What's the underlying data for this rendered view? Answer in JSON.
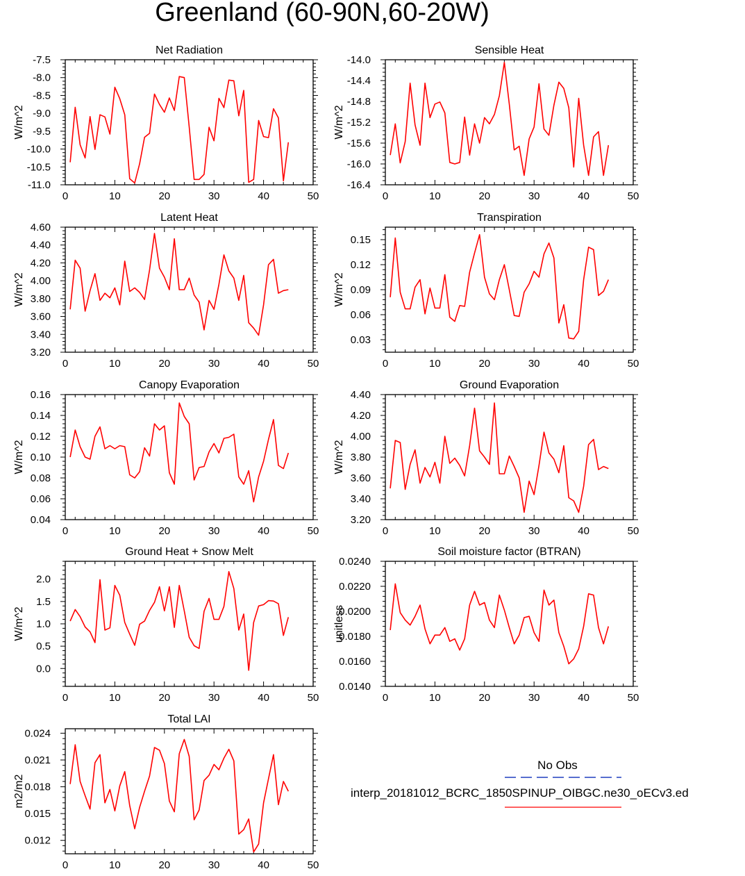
{
  "title": "Greenland (60-90N,60-20W)",
  "legend": {
    "obs_label": "No Obs",
    "obs_color": "#1f3fbf",
    "model_label": "interp_20181012_BCRC_1850SPINUP_OIBGC.ne30_oECv3.ed",
    "model_color": "#ff0000"
  },
  "chart_data": [
    {
      "type": "line",
      "title": "Net Radiation",
      "ylabel": "W/m^2",
      "xlim": [
        0,
        50
      ],
      "ylim": [
        -11.0,
        -7.5
      ],
      "xticks": [
        "0",
        "10",
        "20",
        "30",
        "40",
        "50"
      ],
      "yticks": [
        "-7.5",
        "-8.0",
        "-8.5",
        "-9.0",
        "-9.5",
        "-10.0",
        "-10.5",
        "-11.0"
      ],
      "x": [
        1,
        2,
        3,
        4,
        5,
        6,
        7,
        8,
        9,
        10,
        11,
        12,
        13,
        14,
        15,
        16,
        17,
        18,
        19,
        20,
        21,
        22,
        23,
        24,
        25,
        26,
        27,
        28,
        29,
        30,
        31,
        32,
        33,
        34,
        35,
        36,
        37,
        38,
        39,
        40,
        41,
        42,
        43,
        44,
        45
      ],
      "values": [
        -10.37,
        -8.83,
        -9.88,
        -10.25,
        -9.09,
        -10.01,
        -9.04,
        -9.1,
        -9.58,
        -8.27,
        -8.59,
        -9.04,
        -10.83,
        -10.95,
        -10.41,
        -9.67,
        -9.56,
        -8.46,
        -8.75,
        -8.97,
        -8.57,
        -8.92,
        -7.97,
        -8.0,
        -9.38,
        -10.85,
        -10.85,
        -10.71,
        -9.39,
        -9.77,
        -8.58,
        -8.84,
        -8.07,
        -8.09,
        -9.07,
        -8.36,
        -10.93,
        -10.85,
        -9.2,
        -9.65,
        -9.68,
        -8.87,
        -9.13,
        -10.89,
        -9.81
      ],
      "color": "#ff0000"
    },
    {
      "type": "line",
      "title": "Sensible Heat",
      "ylabel": "W/m^2",
      "xlim": [
        0,
        50
      ],
      "ylim": [
        -16.4,
        -14.0
      ],
      "xticks": [
        "0",
        "10",
        "20",
        "30",
        "40",
        "50"
      ],
      "yticks": [
        "-14.0",
        "-14.4",
        "-14.8",
        "-15.2",
        "-15.6",
        "-16.0",
        "-16.4"
      ],
      "x": [
        1,
        2,
        3,
        4,
        5,
        6,
        7,
        8,
        9,
        10,
        11,
        12,
        13,
        14,
        15,
        16,
        17,
        18,
        19,
        20,
        21,
        22,
        23,
        24,
        25,
        26,
        27,
        28,
        29,
        30,
        31,
        32,
        33,
        34,
        35,
        36,
        37,
        38,
        39,
        40,
        41,
        42,
        43,
        44,
        45
      ],
      "values": [
        -15.83,
        -15.23,
        -15.98,
        -15.57,
        -14.45,
        -15.25,
        -15.64,
        -14.45,
        -15.11,
        -14.85,
        -14.81,
        -15.02,
        -15.97,
        -16.0,
        -15.97,
        -15.1,
        -15.83,
        -15.23,
        -15.6,
        -15.11,
        -15.23,
        -15.05,
        -14.69,
        -14.05,
        -14.85,
        -15.73,
        -15.66,
        -16.22,
        -15.52,
        -15.29,
        -14.46,
        -15.33,
        -15.45,
        -14.87,
        -14.43,
        -14.55,
        -14.92,
        -16.06,
        -14.74,
        -15.64,
        -16.22,
        -15.48,
        -15.38,
        -16.22,
        -15.64
      ],
      "color": "#ff0000"
    },
    {
      "type": "line",
      "title": "Latent Heat",
      "ylabel": "W/m^2",
      "xlim": [
        0,
        50
      ],
      "ylim": [
        3.2,
        4.6
      ],
      "xticks": [
        "0",
        "10",
        "20",
        "30",
        "40",
        "50"
      ],
      "yticks": [
        "4.60",
        "4.40",
        "4.20",
        "4.00",
        "3.80",
        "3.60",
        "3.40",
        "3.20"
      ],
      "x": [
        1,
        2,
        3,
        4,
        5,
        6,
        7,
        8,
        9,
        10,
        11,
        12,
        13,
        14,
        15,
        16,
        17,
        18,
        19,
        20,
        21,
        22,
        23,
        24,
        25,
        26,
        27,
        28,
        29,
        30,
        31,
        32,
        33,
        34,
        35,
        36,
        37,
        38,
        39,
        40,
        41,
        42,
        43,
        44,
        45
      ],
      "values": [
        3.68,
        4.23,
        4.14,
        3.66,
        3.89,
        4.08,
        3.78,
        3.86,
        3.81,
        3.92,
        3.73,
        4.22,
        3.88,
        3.92,
        3.87,
        3.79,
        4.12,
        4.53,
        4.14,
        4.04,
        3.9,
        4.47,
        3.9,
        3.9,
        4.03,
        3.84,
        3.76,
        3.45,
        3.78,
        3.68,
        3.96,
        4.29,
        4.11,
        4.03,
        3.78,
        4.06,
        3.53,
        3.47,
        3.39,
        3.73,
        4.18,
        4.24,
        3.86,
        3.89,
        3.9
      ],
      "color": "#ff0000"
    },
    {
      "type": "line",
      "title": "Transpiration",
      "ylabel": "W/m^2",
      "xlim": [
        0,
        50
      ],
      "ylim": [
        0.015,
        0.165
      ],
      "xticks": [
        "0",
        "10",
        "20",
        "30",
        "40",
        "50"
      ],
      "yticks": [
        "0.15",
        "0.12",
        "0.09",
        "0.06",
        "0.03"
      ],
      "x": [
        1,
        2,
        3,
        4,
        5,
        6,
        7,
        8,
        9,
        10,
        11,
        12,
        13,
        14,
        15,
        16,
        17,
        18,
        19,
        20,
        21,
        22,
        23,
        24,
        25,
        26,
        27,
        28,
        29,
        30,
        31,
        32,
        33,
        34,
        35,
        36,
        37,
        38,
        39,
        40,
        41,
        42,
        43,
        44,
        45
      ],
      "values": [
        0.081,
        0.152,
        0.087,
        0.067,
        0.067,
        0.093,
        0.102,
        0.061,
        0.092,
        0.068,
        0.068,
        0.108,
        0.057,
        0.052,
        0.071,
        0.07,
        0.111,
        0.134,
        0.156,
        0.105,
        0.085,
        0.078,
        0.102,
        0.12,
        0.09,
        0.059,
        0.058,
        0.087,
        0.097,
        0.112,
        0.105,
        0.133,
        0.146,
        0.128,
        0.05,
        0.072,
        0.032,
        0.031,
        0.04,
        0.102,
        0.141,
        0.138,
        0.083,
        0.088,
        0.102
      ],
      "color": "#ff0000"
    },
    {
      "type": "line",
      "title": "Canopy Evaporation",
      "ylabel": "W/m^2",
      "xlim": [
        0,
        50
      ],
      "ylim": [
        0.04,
        0.16
      ],
      "xticks": [
        "0",
        "10",
        "20",
        "30",
        "40",
        "50"
      ],
      "yticks": [
        "0.16",
        "0.14",
        "0.12",
        "0.10",
        "0.08",
        "0.06",
        "0.04"
      ],
      "x": [
        1,
        2,
        3,
        4,
        5,
        6,
        7,
        8,
        9,
        10,
        11,
        12,
        13,
        14,
        15,
        16,
        17,
        18,
        19,
        20,
        21,
        22,
        23,
        24,
        25,
        26,
        27,
        28,
        29,
        30,
        31,
        32,
        33,
        34,
        35,
        36,
        37,
        38,
        39,
        40,
        41,
        42,
        43,
        44,
        45
      ],
      "values": [
        0.1,
        0.126,
        0.11,
        0.1,
        0.098,
        0.12,
        0.129,
        0.108,
        0.111,
        0.108,
        0.111,
        0.11,
        0.083,
        0.08,
        0.086,
        0.109,
        0.101,
        0.132,
        0.126,
        0.13,
        0.085,
        0.074,
        0.152,
        0.139,
        0.132,
        0.078,
        0.09,
        0.091,
        0.105,
        0.113,
        0.104,
        0.118,
        0.119,
        0.122,
        0.081,
        0.074,
        0.087,
        0.057,
        0.081,
        0.096,
        0.117,
        0.136,
        0.092,
        0.089,
        0.104
      ],
      "color": "#ff0000"
    },
    {
      "type": "line",
      "title": "Ground Evaporation",
      "ylabel": "W/m^2",
      "xlim": [
        0,
        50
      ],
      "ylim": [
        3.2,
        4.4
      ],
      "xticks": [
        "0",
        "10",
        "20",
        "30",
        "40",
        "50"
      ],
      "yticks": [
        "4.40",
        "4.20",
        "4.00",
        "3.80",
        "3.60",
        "3.40",
        "3.20"
      ],
      "x": [
        1,
        2,
        3,
        4,
        5,
        6,
        7,
        8,
        9,
        10,
        11,
        12,
        13,
        14,
        15,
        16,
        17,
        18,
        19,
        20,
        21,
        22,
        23,
        24,
        25,
        26,
        27,
        28,
        29,
        30,
        31,
        32,
        33,
        34,
        35,
        36,
        37,
        38,
        39,
        40,
        41,
        42,
        43,
        44,
        45
      ],
      "values": [
        3.5,
        3.96,
        3.94,
        3.49,
        3.73,
        3.87,
        3.55,
        3.7,
        3.61,
        3.75,
        3.55,
        4.0,
        3.74,
        3.79,
        3.72,
        3.62,
        3.91,
        4.27,
        3.86,
        3.8,
        3.73,
        4.32,
        3.64,
        3.64,
        3.81,
        3.71,
        3.6,
        3.27,
        3.57,
        3.44,
        3.72,
        4.04,
        3.84,
        3.78,
        3.65,
        3.91,
        3.41,
        3.38,
        3.27,
        3.52,
        3.92,
        3.97,
        3.68,
        3.71,
        3.69
      ],
      "color": "#ff0000"
    },
    {
      "type": "line",
      "title": "Ground Heat + Snow Melt",
      "ylabel": "W/m^2",
      "xlim": [
        0,
        50
      ],
      "ylim": [
        -0.4,
        2.4
      ],
      "xticks": [
        "0",
        "10",
        "20",
        "30",
        "40",
        "50"
      ],
      "yticks": [
        "2.0",
        "1.5",
        "1.0",
        "0.5",
        "0.0"
      ],
      "x": [
        1,
        2,
        3,
        4,
        5,
        6,
        7,
        8,
        9,
        10,
        11,
        12,
        13,
        14,
        15,
        16,
        17,
        18,
        19,
        20,
        21,
        22,
        23,
        24,
        25,
        26,
        27,
        28,
        29,
        30,
        31,
        32,
        33,
        34,
        35,
        36,
        37,
        38,
        39,
        40,
        41,
        42,
        43,
        44,
        45
      ],
      "values": [
        1.06,
        1.32,
        1.16,
        0.93,
        0.82,
        0.58,
        1.99,
        0.86,
        0.91,
        1.86,
        1.64,
        1.03,
        0.77,
        0.52,
        0.99,
        1.06,
        1.3,
        1.48,
        1.83,
        1.29,
        1.83,
        0.92,
        1.86,
        1.29,
        0.7,
        0.51,
        0.45,
        1.28,
        1.57,
        1.1,
        1.1,
        1.39,
        2.17,
        1.79,
        0.86,
        1.22,
        -0.04,
        1.03,
        1.4,
        1.43,
        1.52,
        1.51,
        1.45,
        0.74,
        1.15
      ],
      "color": "#ff0000"
    },
    {
      "type": "line",
      "title": "Soil moisture factor (BTRAN)",
      "ylabel": "unitless",
      "xlim": [
        0,
        50
      ],
      "ylim": [
        0.014,
        0.024
      ],
      "xticks": [
        "0",
        "10",
        "20",
        "30",
        "40",
        "50"
      ],
      "yticks": [
        "0.0240",
        "0.0220",
        "0.0200",
        "0.0180",
        "0.0160",
        "0.0140"
      ],
      "x": [
        1,
        2,
        3,
        4,
        5,
        6,
        7,
        8,
        9,
        10,
        11,
        12,
        13,
        14,
        15,
        16,
        17,
        18,
        19,
        20,
        21,
        22,
        23,
        24,
        25,
        26,
        27,
        28,
        29,
        30,
        31,
        32,
        33,
        34,
        35,
        36,
        37,
        38,
        39,
        40,
        41,
        42,
        43,
        44,
        45
      ],
      "values": [
        0.0185,
        0.0222,
        0.0199,
        0.0193,
        0.0189,
        0.0196,
        0.0205,
        0.0186,
        0.0174,
        0.0181,
        0.0181,
        0.0187,
        0.0176,
        0.0178,
        0.0169,
        0.0178,
        0.0205,
        0.0216,
        0.0205,
        0.0207,
        0.0193,
        0.0187,
        0.0213,
        0.0201,
        0.0187,
        0.0174,
        0.0181,
        0.0195,
        0.0196,
        0.0183,
        0.0176,
        0.0217,
        0.0205,
        0.0209,
        0.0183,
        0.0172,
        0.0158,
        0.0162,
        0.017,
        0.0188,
        0.0214,
        0.0213,
        0.0187,
        0.0174,
        0.0188
      ],
      "color": "#ff0000"
    },
    {
      "type": "line",
      "title": "Total LAI",
      "ylabel": "m2/m2",
      "xlim": [
        0,
        50
      ],
      "ylim": [
        0.0105,
        0.0245
      ],
      "xticks": [
        "0",
        "10",
        "20",
        "30",
        "40",
        "50"
      ],
      "yticks": [
        "0.024",
        "0.021",
        "0.018",
        "0.015",
        "0.012"
      ],
      "x": [
        1,
        2,
        3,
        4,
        5,
        6,
        7,
        8,
        9,
        10,
        11,
        12,
        13,
        14,
        15,
        16,
        17,
        18,
        19,
        20,
        21,
        22,
        23,
        24,
        25,
        26,
        27,
        28,
        29,
        30,
        31,
        32,
        33,
        34,
        35,
        36,
        37,
        38,
        39,
        40,
        41,
        42,
        43,
        44,
        45
      ],
      "values": [
        0.0183,
        0.0227,
        0.0186,
        0.017,
        0.0155,
        0.0207,
        0.0216,
        0.0162,
        0.0177,
        0.0153,
        0.0181,
        0.0197,
        0.0159,
        0.0133,
        0.0157,
        0.0175,
        0.0192,
        0.0224,
        0.0221,
        0.0206,
        0.0164,
        0.0152,
        0.0217,
        0.0233,
        0.0214,
        0.0143,
        0.0154,
        0.0187,
        0.0193,
        0.0205,
        0.0199,
        0.0212,
        0.0222,
        0.0209,
        0.0127,
        0.0132,
        0.0144,
        0.0107,
        0.0116,
        0.0162,
        0.0189,
        0.0216,
        0.016,
        0.0186,
        0.0175
      ],
      "color": "#ff0000"
    }
  ]
}
